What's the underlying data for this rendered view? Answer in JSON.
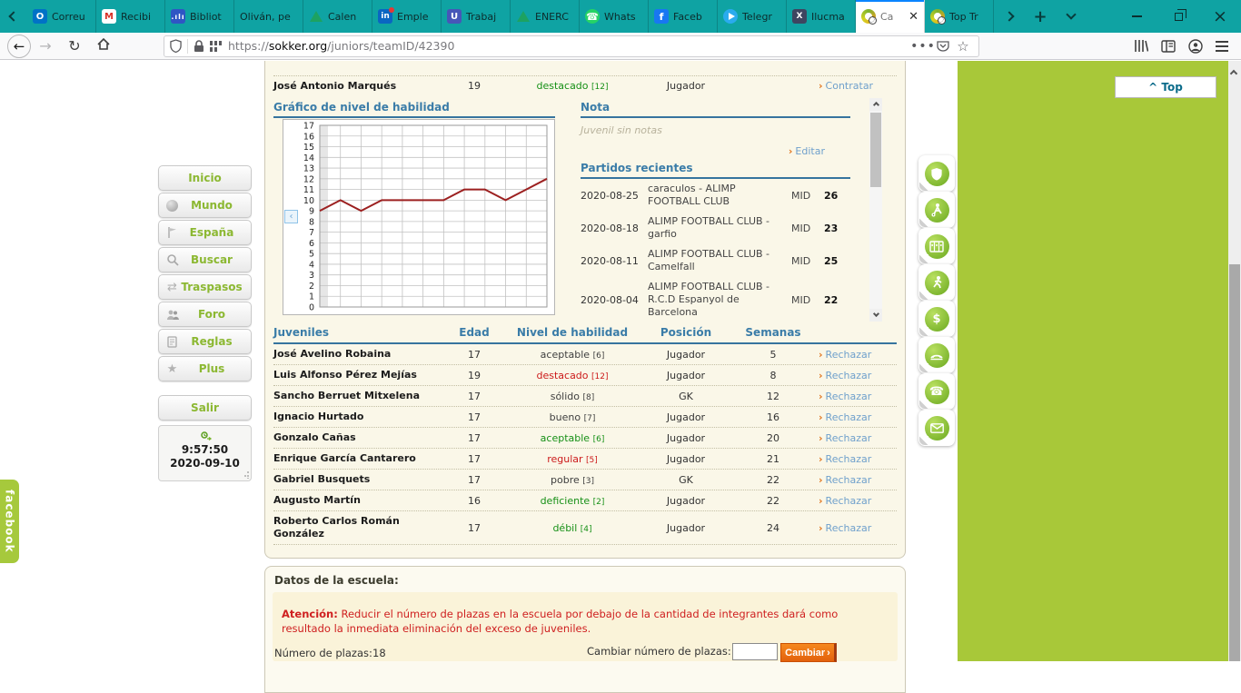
{
  "browser": {
    "tabs": [
      {
        "label": "Correu",
        "icon": "outlook-icon"
      },
      {
        "label": "Recibi",
        "icon": "gmail-icon"
      },
      {
        "label": "Bibliot",
        "icon": "bar-chart-icon"
      },
      {
        "label": "Oliván, pe",
        "icon": "none"
      },
      {
        "label": "Calen",
        "icon": "drive-icon"
      },
      {
        "label": "Emple",
        "icon": "linkedin-icon"
      },
      {
        "label": "Trabaj",
        "icon": "u-app-icon"
      },
      {
        "label": "ENERC",
        "icon": "drive-icon"
      },
      {
        "label": "Whats",
        "icon": "whatsapp-icon"
      },
      {
        "label": "Faceb",
        "icon": "facebook-icon"
      },
      {
        "label": "Telegr",
        "icon": "telegram-icon"
      },
      {
        "label": "Ilucma",
        "icon": "vlex-icon"
      },
      {
        "label": "Ca",
        "icon": "sokker-icon",
        "active": true
      },
      {
        "label": "Top Tr",
        "icon": "sokker-icon"
      }
    ],
    "url": {
      "scheme": "https://",
      "host": "sokker.org",
      "path": "/juniors/teamID/42390"
    }
  },
  "page": {
    "top_button": "^ Top",
    "facebook_tab": "facebook",
    "sidebar": {
      "items": [
        {
          "label": "Inicio",
          "icon": "none"
        },
        {
          "label": "Mundo",
          "icon": "globe-icon"
        },
        {
          "label": "España",
          "icon": "flag-icon"
        },
        {
          "label": "Buscar",
          "icon": "magnifier-icon"
        },
        {
          "label": "Traspasos",
          "icon": "transfer-icon"
        },
        {
          "label": "Foro",
          "icon": "people-icon"
        },
        {
          "label": "Reglas",
          "icon": "rules-icon"
        },
        {
          "label": "Plus",
          "icon": "star-icon"
        }
      ],
      "logout": "Salir",
      "clock": {
        "time": "9:57:50",
        "date": "2020-09-10"
      }
    },
    "player_row": {
      "name": "José Antonio Marqués",
      "age": "19",
      "skill": "destacado",
      "skill_level": "[12]",
      "skill_class": "sk-green",
      "position": "Jugador",
      "action": "Contratar"
    },
    "chart_panel": {
      "title": "Gráfico de nivel de habilidad",
      "nav_arrow": "‹"
    },
    "nota": {
      "title": "Nota",
      "empty": "Juvenil sin notas",
      "edit": "Editar"
    },
    "matches": {
      "title": "Partidos recientes",
      "rows": [
        {
          "date": "2020-08-25",
          "name": "caraculos - ALIMP FOOTBALL CLUB",
          "type": "MID",
          "score": "26"
        },
        {
          "date": "2020-08-18",
          "name": "ALIMP FOOTBALL CLUB - garfio",
          "type": "MID",
          "score": "23"
        },
        {
          "date": "2020-08-11",
          "name": "ALIMP FOOTBALL CLUB - Camelfall",
          "type": "MID",
          "score": "25"
        },
        {
          "date": "2020-08-04",
          "name": "ALIMP FOOTBALL CLUB - R.C.D Espanyol de Barcelona",
          "type": "MID",
          "score": "22"
        }
      ]
    },
    "juveniles": {
      "headers": {
        "name": "Juveniles",
        "age": "Edad",
        "skill": "Nivel de habilidad",
        "position": "Posición",
        "weeks": "Semanas"
      },
      "reject_label": "Rechazar",
      "rows": [
        {
          "name": "José Avelino Robaina",
          "age": "17",
          "skill": "aceptable",
          "level": "[6]",
          "skill_class": "sk-dark",
          "position": "Jugador",
          "weeks": "5"
        },
        {
          "name": "Luis Alfonso Pérez Mejías",
          "age": "19",
          "skill": "destacado",
          "level": "[12]",
          "skill_class": "sk-red",
          "position": "Jugador",
          "weeks": "8"
        },
        {
          "name": "Sancho Berruet Mitxelena",
          "age": "17",
          "skill": "sólido",
          "level": "[8]",
          "skill_class": "sk-dark",
          "position": "GK",
          "weeks": "12"
        },
        {
          "name": "Ignacio Hurtado",
          "age": "17",
          "skill": "bueno",
          "level": "[7]",
          "skill_class": "sk-dark",
          "position": "Jugador",
          "weeks": "16"
        },
        {
          "name": "Gonzalo Cañas",
          "age": "17",
          "skill": "aceptable",
          "level": "[6]",
          "skill_class": "sk-green",
          "position": "Jugador",
          "weeks": "20"
        },
        {
          "name": "Enrique García Cantarero",
          "age": "17",
          "skill": "regular",
          "level": "[5]",
          "skill_class": "sk-red",
          "position": "Jugador",
          "weeks": "21"
        },
        {
          "name": "Gabriel Busquets",
          "age": "17",
          "skill": "pobre",
          "level": "[3]",
          "skill_class": "sk-dark",
          "position": "GK",
          "weeks": "22"
        },
        {
          "name": "Augusto Martín",
          "age": "16",
          "skill": "deficiente",
          "level": "[2]",
          "skill_class": "sk-green",
          "position": "Jugador",
          "weeks": "22"
        },
        {
          "name": "Roberto Carlos Román González",
          "age": "17",
          "skill": "débil",
          "level": "[4]",
          "skill_class": "sk-green",
          "position": "Jugador",
          "weeks": "24"
        }
      ]
    },
    "school": {
      "title": "Datos de la escuela:",
      "warning_bold": "Atención:",
      "warning": " Reducir el número de plazas en la escuela por debajo de la cantidad de integrantes dará como resultado la inmediata eliminación del exceso de juveniles.",
      "plazas_label": "Número de plazas:",
      "plazas_value": "18",
      "change_label": "Cambiar número de plazas:",
      "change_button": "Cambiar"
    },
    "side_icons": [
      "shield-icon",
      "footballer-icon",
      "bench-icon",
      "runner-icon",
      "dollar-icon",
      "stadium-icon",
      "phone-icon",
      "envelope-icon"
    ]
  },
  "chart_data": {
    "type": "line",
    "title": "Gráfico de nivel de habilidad",
    "x": [
      0,
      1,
      2,
      3,
      4,
      5,
      6,
      7,
      8,
      9,
      10,
      11
    ],
    "values": [
      9,
      10,
      9,
      10,
      10,
      10,
      10,
      11,
      11,
      10,
      11,
      12
    ],
    "ylim": [
      0,
      17
    ],
    "yticks": [
      0,
      1,
      2,
      3,
      4,
      5,
      6,
      7,
      8,
      9,
      10,
      11,
      12,
      13,
      14,
      15,
      16,
      17
    ],
    "grid": true,
    "line_color": "#9c2020"
  },
  "colors": {
    "tabbar_teal": "#0fa3a3",
    "lime_green": "#a8c839",
    "header_blue": "#3a7ca8",
    "link_blue": "#6fa0cc",
    "arrow_orange": "#e0761f",
    "cream": "#faf7e8",
    "skill_green": "#169016",
    "skill_red": "#cc1a1a",
    "button_orange": "#e3610c"
  }
}
